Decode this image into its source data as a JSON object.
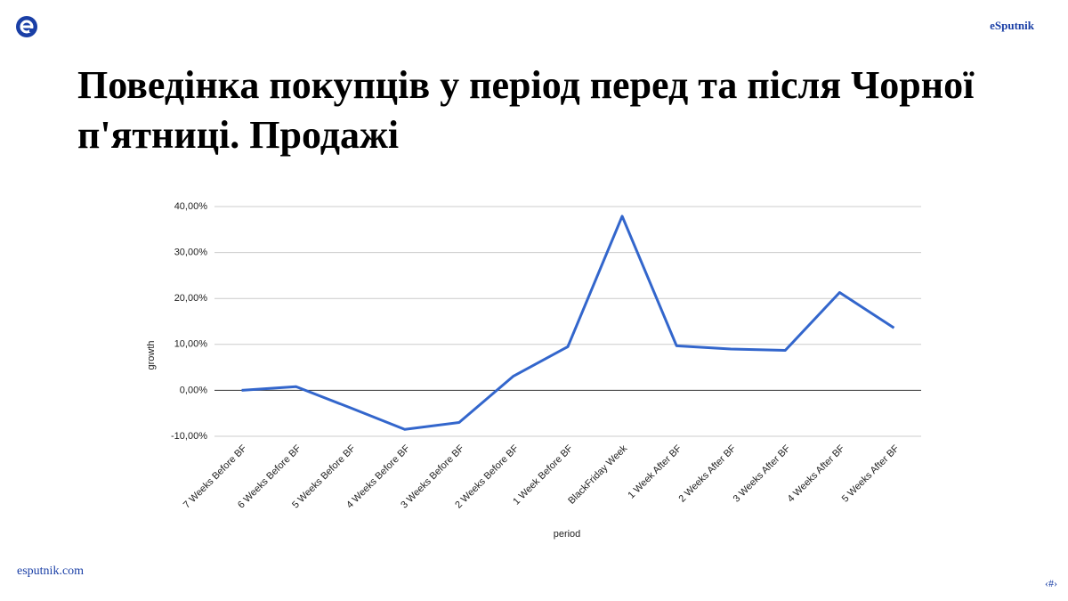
{
  "header": {
    "brand": "eSputnik"
  },
  "title": "Поведінка покупців у період перед та після Чорної п'ятниці. Продажі",
  "footer": {
    "site": "esputnik.com",
    "slide_number": "‹#›"
  },
  "chart_data": {
    "type": "line",
    "x_label": "period",
    "y_label": "growth",
    "categories": [
      "7 Weeks Before BF",
      "6 Weeks Before BF",
      "5 Weeks Before BF",
      "4 Weeks Before BF",
      "3 Weeks Before BF",
      "2 Weeks Before BF",
      "1 Week Before BF",
      "BlackFriday Week",
      "1 Week After BF",
      "2 Weeks After BF",
      "3 Weeks After BF",
      "4 Weeks After BF",
      "5 Weeks After BF"
    ],
    "series": [
      {
        "name": "growth",
        "color": "#3366cc",
        "values": [
          0,
          0.8,
          -3.8,
          -8.5,
          -7.0,
          3.1,
          9.5,
          37.9,
          9.7,
          9.0,
          8.7,
          21.3,
          13.6
        ]
      }
    ],
    "ylim": [
      -10,
      40
    ],
    "yticks": [
      {
        "value": -10,
        "label": "-10,00%"
      },
      {
        "value": 0,
        "label": "0,00%"
      },
      {
        "value": 10,
        "label": "10,00%"
      },
      {
        "value": 20,
        "label": "20,00%"
      },
      {
        "value": 30,
        "label": "30,00%"
      },
      {
        "value": 40,
        "label": "40,00%"
      }
    ],
    "grid": true
  }
}
